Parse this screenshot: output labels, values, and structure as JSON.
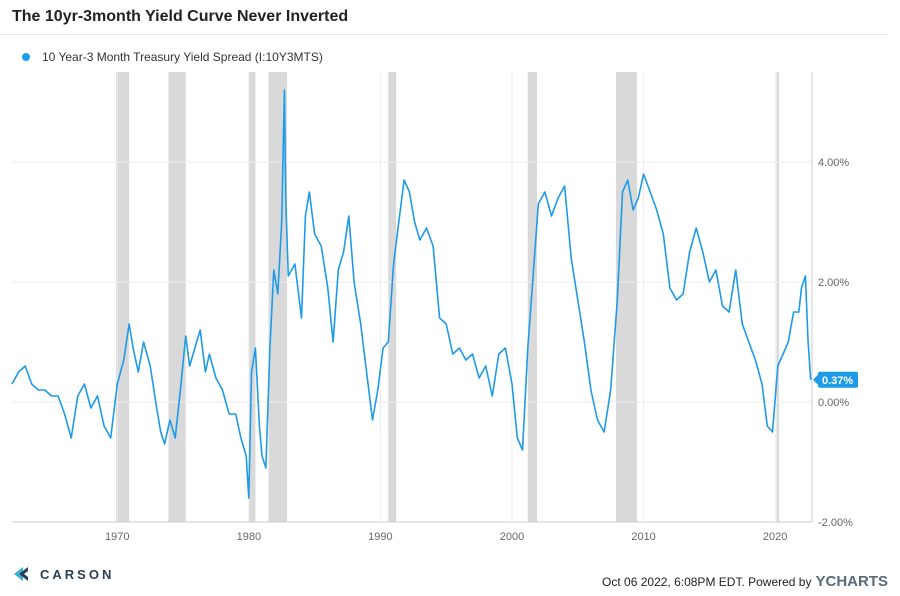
{
  "header": {
    "title": "The 10yr-3month Yield Curve Never Inverted"
  },
  "colors": {
    "series": "#1e9be8",
    "recession": "#d9d9d9",
    "grid": "#eeeeee"
  },
  "brand": {
    "name": "CARSON",
    "icon": "carson-logo-icon"
  },
  "footer": {
    "text": "Oct 06 2022, 6:08PM EDT. Powered by",
    "logo_text": "YCHARTS"
  },
  "chart_data": {
    "type": "line",
    "title": "The 10yr-3month Yield Curve Never Inverted",
    "xlabel": "",
    "ylabel": "",
    "xlim": [
      1962.0,
      2022.8
    ],
    "ylim": [
      -2.0,
      5.5
    ],
    "x_ticks": [
      1970,
      1980,
      1990,
      2000,
      2010,
      2020
    ],
    "x_tick_labels": [
      "1970",
      "1980",
      "1990",
      "2000",
      "2010",
      "2020"
    ],
    "y_ticks": [
      -2,
      0,
      2,
      4
    ],
    "y_tick_labels": [
      "-2.00%",
      "0.00%",
      "2.00%",
      "4.00%"
    ],
    "grid": true,
    "legend_position": "top-left",
    "last_value_label": "0.37%",
    "recessions": [
      [
        1969.9,
        1970.9
      ],
      [
        1973.9,
        1975.2
      ],
      [
        1980.0,
        1980.5
      ],
      [
        1981.5,
        1982.9
      ],
      [
        1990.6,
        1991.2
      ],
      [
        2001.2,
        2001.9
      ],
      [
        2007.9,
        2009.5
      ],
      [
        2020.1,
        2020.3
      ]
    ],
    "series": [
      {
        "name": "10 Year-3 Month Treasury Yield Spread (I:10Y3MTS)",
        "x": [
          1962.0,
          1962.5,
          1963.0,
          1963.5,
          1964.0,
          1964.5,
          1965.0,
          1965.5,
          1966.0,
          1966.5,
          1967.0,
          1967.5,
          1968.0,
          1968.5,
          1969.0,
          1969.5,
          1970.0,
          1970.5,
          1970.9,
          1971.2,
          1971.6,
          1972.0,
          1972.5,
          1973.0,
          1973.3,
          1973.6,
          1974.0,
          1974.4,
          1974.8,
          1975.2,
          1975.5,
          1975.9,
          1976.3,
          1976.7,
          1977.0,
          1977.5,
          1978.0,
          1978.5,
          1979.0,
          1979.4,
          1979.8,
          1980.0,
          1980.2,
          1980.5,
          1980.8,
          1981.0,
          1981.3,
          1981.6,
          1981.9,
          1982.2,
          1982.5,
          1982.7,
          1982.8,
          1983.0,
          1983.5,
          1984.0,
          1984.3,
          1984.6,
          1985.0,
          1985.5,
          1986.0,
          1986.4,
          1986.8,
          1987.2,
          1987.6,
          1988.0,
          1988.5,
          1989.0,
          1989.4,
          1989.8,
          1990.2,
          1990.6,
          1991.0,
          1991.4,
          1991.8,
          1992.2,
          1992.6,
          1993.0,
          1993.5,
          1994.0,
          1994.5,
          1995.0,
          1995.5,
          1996.0,
          1996.5,
          1997.0,
          1997.5,
          1998.0,
          1998.5,
          1999.0,
          1999.5,
          2000.0,
          2000.4,
          2000.8,
          2001.2,
          2001.6,
          2002.0,
          2002.5,
          2003.0,
          2003.5,
          2004.0,
          2004.5,
          2005.0,
          2005.5,
          2006.0,
          2006.5,
          2007.0,
          2007.5,
          2008.0,
          2008.4,
          2008.8,
          2009.2,
          2009.6,
          2010.0,
          2010.5,
          2011.0,
          2011.5,
          2012.0,
          2012.5,
          2013.0,
          2013.5,
          2014.0,
          2014.5,
          2015.0,
          2015.5,
          2016.0,
          2016.5,
          2017.0,
          2017.5,
          2018.0,
          2018.5,
          2019.0,
          2019.4,
          2019.8,
          2020.2,
          2020.6,
          2021.0,
          2021.4,
          2021.8,
          2022.0,
          2022.3,
          2022.5,
          2022.7
        ],
        "values": [
          0.3,
          0.5,
          0.6,
          0.3,
          0.2,
          0.2,
          0.1,
          0.1,
          -0.2,
          -0.6,
          0.1,
          0.3,
          -0.1,
          0.1,
          -0.4,
          -0.6,
          0.3,
          0.7,
          1.3,
          0.9,
          0.5,
          1.0,
          0.6,
          -0.1,
          -0.5,
          -0.7,
          -0.3,
          -0.6,
          0.2,
          1.1,
          0.6,
          0.9,
          1.2,
          0.5,
          0.8,
          0.4,
          0.2,
          -0.2,
          -0.2,
          -0.6,
          -0.9,
          -1.6,
          0.5,
          0.9,
          -0.4,
          -0.9,
          -1.1,
          0.9,
          2.2,
          1.8,
          3.0,
          5.2,
          3.4,
          2.1,
          2.3,
          1.4,
          3.1,
          3.5,
          2.8,
          2.6,
          1.9,
          1.0,
          2.2,
          2.5,
          3.1,
          2.0,
          1.3,
          0.4,
          -0.3,
          0.2,
          0.9,
          1.0,
          2.3,
          3.0,
          3.7,
          3.5,
          3.0,
          2.7,
          2.9,
          2.6,
          1.4,
          1.3,
          0.8,
          0.9,
          0.7,
          0.8,
          0.4,
          0.6,
          0.1,
          0.8,
          0.9,
          0.3,
          -0.6,
          -0.8,
          0.9,
          2.1,
          3.3,
          3.5,
          3.1,
          3.4,
          3.6,
          2.4,
          1.7,
          1.0,
          0.2,
          -0.3,
          -0.5,
          0.2,
          1.7,
          3.5,
          3.7,
          3.2,
          3.4,
          3.8,
          3.5,
          3.2,
          2.8,
          1.9,
          1.7,
          1.8,
          2.5,
          2.9,
          2.5,
          2.0,
          2.2,
          1.6,
          1.5,
          2.2,
          1.3,
          1.0,
          0.7,
          0.3,
          -0.4,
          -0.5,
          0.6,
          0.8,
          1.0,
          1.5,
          1.5,
          1.9,
          2.1,
          1.0,
          0.37
        ]
      }
    ]
  }
}
